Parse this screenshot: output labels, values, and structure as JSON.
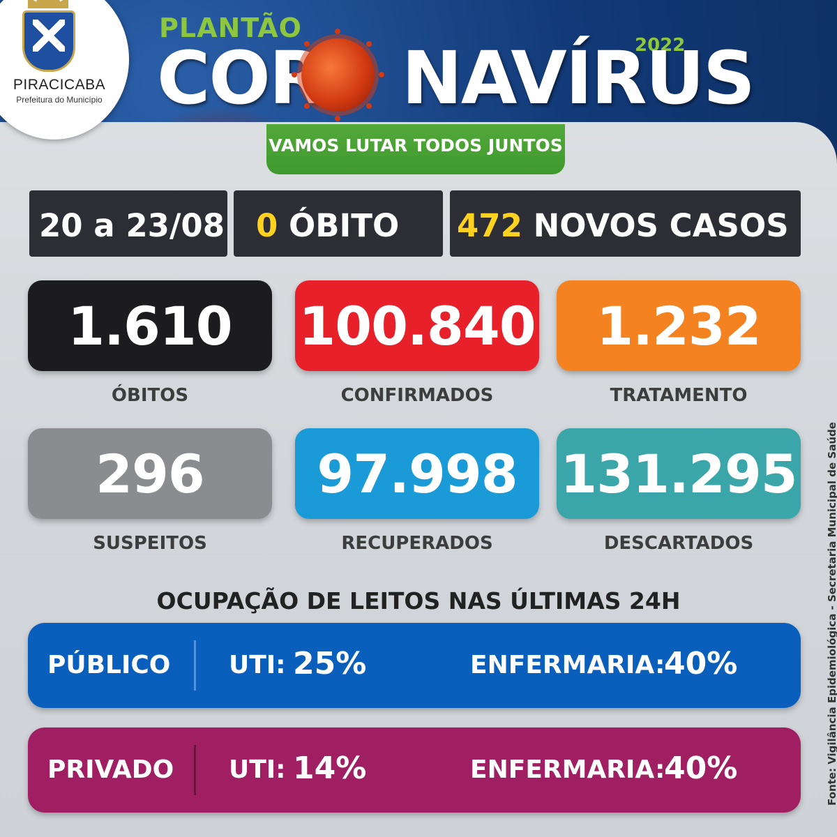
{
  "header": {
    "logo_name": "PIRACICABA",
    "logo_subtitle": "Prefeitura do Município",
    "kicker": "PLANTÃO",
    "title_before": "COR",
    "title_after": "NAVÍRUS",
    "year": "2022",
    "slogan": "VAMOS LUTAR TODOS JUNTOS",
    "virus_icon": "coronavirus-icon"
  },
  "summary": {
    "period": "20 a 23/08",
    "deaths_new_value": "0",
    "deaths_new_label": "ÓBITO",
    "new_cases_value": "472",
    "new_cases_label": "NOVOS CASOS"
  },
  "stats": [
    {
      "value": "1.610",
      "label": "ÓBITOS",
      "color": "#1c1c1e"
    },
    {
      "value": "100.840",
      "label": "CONFIRMADOS",
      "color": "#e8202a"
    },
    {
      "value": "1.232",
      "label": "TRATAMENTO",
      "color": "#f58220"
    },
    {
      "value": "296",
      "label": "SUSPEITOS",
      "color": "#8a8c8f"
    },
    {
      "value": "97.998",
      "label": "RECUPERADOS",
      "color": "#1a9ad7"
    },
    {
      "value": "131.295",
      "label": "DESCARTADOS",
      "color": "#3aa6aa"
    }
  ],
  "beds": {
    "title": "OCUPAÇÃO DE LEITOS NAS ÚLTIMAS 24H",
    "rows": [
      {
        "sector": "PÚBLICO",
        "uti_label": "UTI:",
        "uti_value": "25%",
        "ward_label": "ENFERMARIA:",
        "ward_value": "40%",
        "color": "#0a5fbd"
      },
      {
        "sector": "PRIVADO",
        "uti_label": "UTI:",
        "uti_value": "14%",
        "ward_label": "ENFERMARIA:",
        "ward_value": "40%",
        "color": "#a01f63"
      }
    ]
  },
  "source": "Fonte: Vigilância Epidemiológica - Secretaria Municipal de Saúde"
}
